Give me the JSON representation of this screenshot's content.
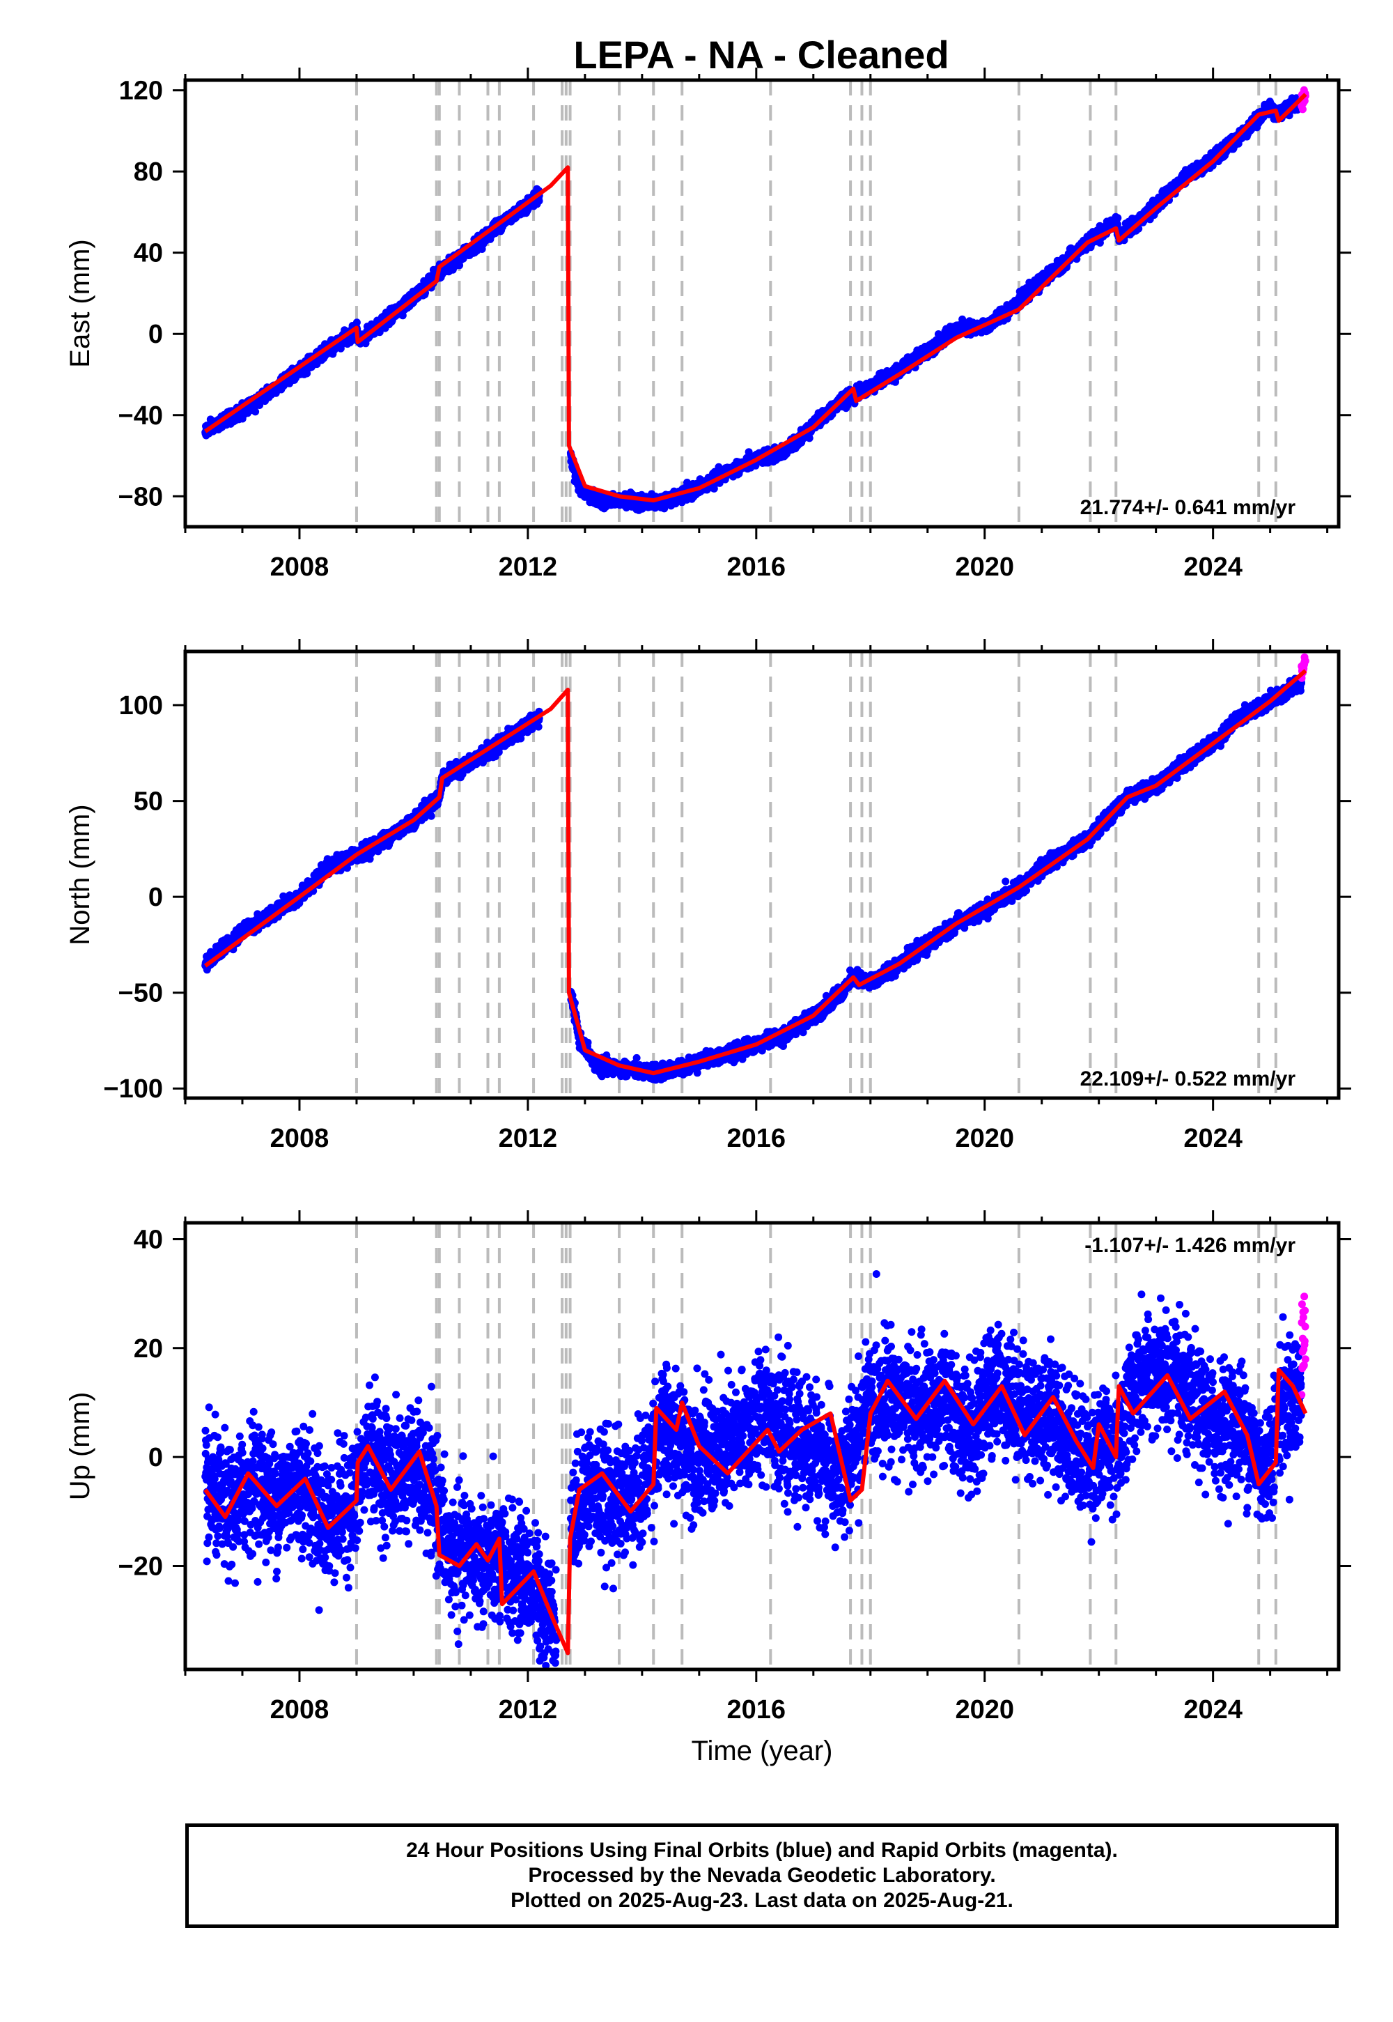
{
  "title": "LEPA  - NA - Cleaned",
  "footer": {
    "line1": "24 Hour Positions Using Final Orbits (blue) and Rapid Orbits (magenta).",
    "line2": "Processed by the Nevada Geodetic Laboratory.",
    "line3": "Plotted on 2025-Aug-23. Last data on 2025-Aug-21."
  },
  "colors": {
    "final_orbits": "#0000ff",
    "rapid_orbits": "#ff00ff",
    "model": "#ff0000",
    "event_lines": "#bbbbbb"
  },
  "chart_data": [
    {
      "type": "scatter",
      "component": "east",
      "ylabel": "East (mm)",
      "xlabel": "",
      "xlim": [
        2006.0,
        2026.2
      ],
      "ylim": [
        -95,
        125
      ],
      "xticks": [
        2008,
        2012,
        2016,
        2020,
        2024
      ],
      "yticks": [
        -80,
        -40,
        0,
        40,
        80,
        120
      ],
      "rate_label": "21.774+/- 0.641 mm/yr",
      "rate_position": "bottom-right",
      "scatter_sigma": 1.5,
      "series": [
        {
          "legend": "final orbits",
          "values": [
            [
              2006.35,
              -48
            ],
            [
              2007.0,
              -38
            ],
            [
              2008.0,
              -18
            ],
            [
              2009.0,
              2
            ],
            [
              2009.05,
              -4
            ],
            [
              2010.0,
              18
            ],
            [
              2010.45,
              30
            ],
            [
              2011.0,
              42
            ],
            [
              2011.5,
              54
            ],
            [
              2012.2,
              68
            ]
          ]
        },
        {
          "legend": "final orbits",
          "values": [
            [
              2012.75,
              -60
            ],
            [
              2012.9,
              -76
            ],
            [
              2013.2,
              -82
            ],
            [
              2013.8,
              -82
            ],
            [
              2014.2,
              -83
            ],
            [
              2014.5,
              -82
            ],
            [
              2015.0,
              -76
            ],
            [
              2015.5,
              -68
            ],
            [
              2016.0,
              -62
            ],
            [
              2016.5,
              -58
            ],
            [
              2017.0,
              -45
            ],
            [
              2017.5,
              -33
            ],
            [
              2018.0,
              -26
            ],
            [
              2018.5,
              -18
            ],
            [
              2019.0,
              -8
            ],
            [
              2019.5,
              2
            ],
            [
              2020.0,
              3
            ],
            [
              2020.6,
              16
            ],
            [
              2021.0,
              26
            ],
            [
              2021.8,
              45
            ],
            [
              2022.3,
              55
            ],
            [
              2022.35,
              48
            ],
            [
              2023.0,
              63
            ],
            [
              2023.5,
              77
            ],
            [
              2024.0,
              86
            ],
            [
              2024.5,
              98
            ],
            [
              2025.0,
              112
            ],
            [
              2025.1,
              108
            ],
            [
              2025.55,
              115
            ]
          ]
        },
        {
          "legend": "rapid orbits",
          "values": [
            [
              2025.55,
              114
            ],
            [
              2025.62,
              118
            ]
          ]
        }
      ],
      "model_line": [
        [
          2006.35,
          -48
        ],
        [
          2009.0,
          3
        ],
        [
          2009.02,
          -4
        ],
        [
          2010.4,
          26
        ],
        [
          2010.45,
          33
        ],
        [
          2012.4,
          73
        ],
        [
          2012.7,
          82
        ],
        [
          2012.72,
          -55
        ],
        [
          2013.0,
          -75
        ],
        [
          2013.6,
          -80
        ],
        [
          2014.2,
          -82
        ],
        [
          2015.0,
          -76
        ],
        [
          2016.0,
          -62
        ],
        [
          2017.0,
          -46
        ],
        [
          2017.7,
          -27
        ],
        [
          2017.75,
          -33
        ],
        [
          2018.5,
          -20
        ],
        [
          2019.5,
          -2
        ],
        [
          2020.6,
          12
        ],
        [
          2021.8,
          45
        ],
        [
          2022.3,
          52
        ],
        [
          2022.35,
          46
        ],
        [
          2023.0,
          62
        ],
        [
          2024.0,
          85
        ],
        [
          2024.8,
          108
        ],
        [
          2025.1,
          110
        ],
        [
          2025.15,
          105
        ],
        [
          2025.62,
          118
        ]
      ],
      "event_lines": [
        2009.0,
        2010.4,
        2010.45,
        2010.8,
        2011.3,
        2011.5,
        2012.1,
        2012.6,
        2012.67,
        2012.74,
        2013.6,
        2014.2,
        2014.7,
        2016.25,
        2017.65,
        2017.85,
        2018.0,
        2020.6,
        2021.85,
        2022.3,
        2024.8,
        2025.1
      ]
    },
    {
      "type": "scatter",
      "component": "north",
      "ylabel": "North (mm)",
      "xlabel": "",
      "xlim": [
        2006.0,
        2026.2
      ],
      "ylim": [
        -105,
        128
      ],
      "xticks": [
        2008,
        2012,
        2016,
        2020,
        2024
      ],
      "yticks": [
        -100,
        -50,
        0,
        50,
        100
      ],
      "rate_label": "22.109+/- 0.522 mm/yr",
      "rate_position": "bottom-right",
      "scatter_sigma": 1.8,
      "series": [
        {
          "legend": "final orbits",
          "values": [
            [
              2006.35,
              -35
            ],
            [
              2007.0,
              -18
            ],
            [
              2008.0,
              0
            ],
            [
              2008.5,
              15
            ],
            [
              2009.0,
              22
            ],
            [
              2009.5,
              30
            ],
            [
              2010.0,
              40
            ],
            [
              2010.45,
              52
            ],
            [
              2010.5,
              62
            ],
            [
              2011.0,
              70
            ],
            [
              2011.5,
              80
            ],
            [
              2012.2,
              93
            ]
          ]
        },
        {
          "legend": "final orbits",
          "values": [
            [
              2012.75,
              -50
            ],
            [
              2012.9,
              -74
            ],
            [
              2013.2,
              -88
            ],
            [
              2013.8,
              -90
            ],
            [
              2014.2,
              -92
            ],
            [
              2014.6,
              -90
            ],
            [
              2015.0,
              -86
            ],
            [
              2015.5,
              -82
            ],
            [
              2016.0,
              -77
            ],
            [
              2016.5,
              -72
            ],
            [
              2017.0,
              -62
            ],
            [
              2017.5,
              -50
            ],
            [
              2017.7,
              -42
            ],
            [
              2018.0,
              -45
            ],
            [
              2018.5,
              -35
            ],
            [
              2019.0,
              -25
            ],
            [
              2019.5,
              -14
            ],
            [
              2020.0,
              -7
            ],
            [
              2020.6,
              5
            ],
            [
              2021.0,
              15
            ],
            [
              2021.8,
              30
            ],
            [
              2022.3,
              45
            ],
            [
              2022.5,
              52
            ],
            [
              2023.0,
              58
            ],
            [
              2023.5,
              70
            ],
            [
              2024.0,
              80
            ],
            [
              2024.5,
              95
            ],
            [
              2025.0,
              102
            ],
            [
              2025.55,
              112
            ]
          ]
        },
        {
          "legend": "rapid orbits",
          "values": [
            [
              2025.55,
              116
            ],
            [
              2025.62,
              122
            ]
          ]
        }
      ],
      "model_line": [
        [
          2006.35,
          -36
        ],
        [
          2008.0,
          0
        ],
        [
          2009.0,
          22
        ],
        [
          2010.0,
          40
        ],
        [
          2010.45,
          52
        ],
        [
          2010.5,
          62
        ],
        [
          2012.4,
          98
        ],
        [
          2012.7,
          108
        ],
        [
          2012.72,
          -50
        ],
        [
          2013.0,
          -80
        ],
        [
          2013.6,
          -88
        ],
        [
          2014.2,
          -92
        ],
        [
          2015.0,
          -86
        ],
        [
          2016.0,
          -77
        ],
        [
          2017.0,
          -62
        ],
        [
          2017.7,
          -42
        ],
        [
          2017.8,
          -46
        ],
        [
          2018.5,
          -35
        ],
        [
          2019.5,
          -14
        ],
        [
          2020.6,
          5
        ],
        [
          2021.8,
          30
        ],
        [
          2022.5,
          52
        ],
        [
          2023.0,
          58
        ],
        [
          2024.0,
          80
        ],
        [
          2025.0,
          102
        ],
        [
          2025.62,
          118
        ]
      ],
      "event_lines": [
        2009.0,
        2010.4,
        2010.45,
        2010.8,
        2011.3,
        2011.5,
        2012.1,
        2012.6,
        2012.67,
        2012.74,
        2013.6,
        2014.2,
        2014.7,
        2016.25,
        2017.65,
        2017.85,
        2018.0,
        2020.6,
        2021.85,
        2022.3,
        2024.8,
        2025.1
      ]
    },
    {
      "type": "scatter",
      "component": "up",
      "ylabel": "Up (mm)",
      "xlabel": "Time (year)",
      "xlim": [
        2006.0,
        2026.2
      ],
      "ylim": [
        -39,
        43
      ],
      "xticks": [
        2008,
        2012,
        2016,
        2020,
        2024
      ],
      "yticks": [
        -20,
        0,
        20,
        40
      ],
      "rate_label": "-1.107+/- 1.426 mm/yr",
      "rate_position": "top-right",
      "scatter_sigma": 5.5,
      "series": [
        {
          "legend": "final orbits",
          "values": [
            [
              2006.35,
              -6
            ],
            [
              2006.8,
              -10
            ],
            [
              2007.2,
              -4
            ],
            [
              2007.6,
              -8
            ],
            [
              2008.0,
              -4
            ],
            [
              2008.5,
              -12
            ],
            [
              2009.0,
              -8
            ],
            [
              2009.2,
              2
            ],
            [
              2009.6,
              -4
            ],
            [
              2010.0,
              -2
            ],
            [
              2010.4,
              -8
            ],
            [
              2010.6,
              -18
            ],
            [
              2011.0,
              -18
            ],
            [
              2011.5,
              -20
            ],
            [
              2012.0,
              -22
            ],
            [
              2012.5,
              -30
            ]
          ]
        },
        {
          "legend": "final orbits",
          "values": [
            [
              2012.75,
              -14
            ],
            [
              2013.0,
              -5
            ],
            [
              2013.5,
              -8
            ],
            [
              2014.0,
              -6
            ],
            [
              2014.3,
              5
            ],
            [
              2014.8,
              2
            ],
            [
              2015.3,
              0
            ],
            [
              2015.8,
              4
            ],
            [
              2016.2,
              10
            ],
            [
              2016.5,
              3
            ],
            [
              2017.0,
              2
            ],
            [
              2017.5,
              -5
            ],
            [
              2017.9,
              8
            ],
            [
              2018.3,
              12
            ],
            [
              2018.8,
              8
            ],
            [
              2019.3,
              10
            ],
            [
              2019.8,
              4
            ],
            [
              2020.2,
              14
            ],
            [
              2020.7,
              8
            ],
            [
              2021.2,
              8
            ],
            [
              2021.7,
              0
            ],
            [
              2022.3,
              2
            ],
            [
              2022.6,
              12
            ],
            [
              2023.1,
              16
            ],
            [
              2023.6,
              10
            ],
            [
              2024.0,
              6
            ],
            [
              2024.5,
              6
            ],
            [
              2024.9,
              -3
            ],
            [
              2025.2,
              10
            ],
            [
              2025.55,
              12
            ]
          ]
        },
        {
          "legend": "rapid orbits",
          "values": [
            [
              2025.55,
              15
            ],
            [
              2025.6,
              25
            ],
            [
              2025.62,
              33
            ]
          ]
        }
      ],
      "model_line": [
        [
          2006.35,
          -6
        ],
        [
          2006.7,
          -11
        ],
        [
          2007.1,
          -3
        ],
        [
          2007.6,
          -9
        ],
        [
          2008.1,
          -4
        ],
        [
          2008.5,
          -13
        ],
        [
          2009.0,
          -8
        ],
        [
          2009.02,
          -1
        ],
        [
          2009.2,
          2
        ],
        [
          2009.6,
          -6
        ],
        [
          2010.1,
          1
        ],
        [
          2010.4,
          -9
        ],
        [
          2010.45,
          -18
        ],
        [
          2010.8,
          -20
        ],
        [
          2011.1,
          -16
        ],
        [
          2011.3,
          -19
        ],
        [
          2011.5,
          -15
        ],
        [
          2011.55,
          -27
        ],
        [
          2012.1,
          -21
        ],
        [
          2012.45,
          -30
        ],
        [
          2012.7,
          -36
        ],
        [
          2012.74,
          -15
        ],
        [
          2012.9,
          -6
        ],
        [
          2013.3,
          -3
        ],
        [
          2013.8,
          -10
        ],
        [
          2014.2,
          -5
        ],
        [
          2014.25,
          9
        ],
        [
          2014.6,
          5
        ],
        [
          2014.7,
          10
        ],
        [
          2015.0,
          2
        ],
        [
          2015.5,
          -3
        ],
        [
          2016.2,
          5
        ],
        [
          2016.4,
          1
        ],
        [
          2016.8,
          5
        ],
        [
          2017.3,
          8
        ],
        [
          2017.65,
          -8
        ],
        [
          2017.85,
          -6
        ],
        [
          2018.0,
          8
        ],
        [
          2018.3,
          14
        ],
        [
          2018.8,
          7
        ],
        [
          2019.3,
          14
        ],
        [
          2019.8,
          6
        ],
        [
          2020.3,
          13
        ],
        [
          2020.7,
          4
        ],
        [
          2021.2,
          11
        ],
        [
          2021.6,
          3
        ],
        [
          2021.9,
          -2
        ],
        [
          2022.0,
          6
        ],
        [
          2022.3,
          0
        ],
        [
          2022.35,
          13
        ],
        [
          2022.6,
          8
        ],
        [
          2023.2,
          15
        ],
        [
          2023.6,
          7
        ],
        [
          2024.2,
          12
        ],
        [
          2024.6,
          4
        ],
        [
          2024.8,
          -5
        ],
        [
          2025.1,
          -1
        ],
        [
          2025.15,
          16
        ],
        [
          2025.4,
          13
        ],
        [
          2025.62,
          8
        ]
      ],
      "event_lines": [
        2009.0,
        2010.4,
        2010.45,
        2010.8,
        2011.3,
        2011.5,
        2012.1,
        2012.6,
        2012.67,
        2012.74,
        2013.6,
        2014.2,
        2014.7,
        2016.25,
        2017.65,
        2017.85,
        2018.0,
        2020.6,
        2021.85,
        2022.3,
        2024.8,
        2025.1
      ]
    }
  ]
}
